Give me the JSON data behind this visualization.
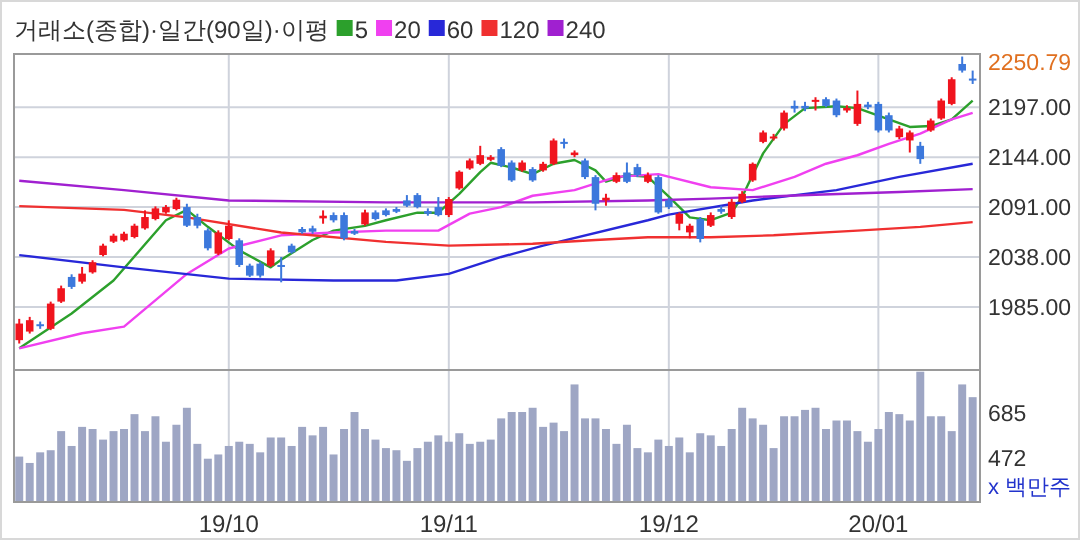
{
  "chart_data": [
    {
      "type": "candlestick",
      "title": "거래소(종합)·일간(90일)·이평",
      "legend": "top left",
      "grid": true,
      "tick_labels": "y",
      "ohlc": [
        [
          1949.7,
          1972.3,
          1946.1,
          1967.3
        ],
        [
          1958.8,
          1974.4,
          1956.7,
          1970.9
        ],
        [
          1966.6,
          1969.4,
          1961.7,
          1965.2
        ],
        [
          1961.7,
          1990.6,
          1960.3,
          1988.5
        ],
        [
          1990.6,
          2007.6,
          1989.2,
          2004.8
        ],
        [
          2016.8,
          2019.6,
          2004.1,
          2006.2
        ],
        [
          2011.8,
          2027.4,
          2009.7,
          2020.3
        ],
        [
          2021.7,
          2034.5,
          2020.3,
          2032.4
        ],
        [
          2040.1,
          2052.1,
          2038.7,
          2050.0
        ],
        [
          2054.3,
          2062.7,
          2052.8,
          2060.6
        ],
        [
          2055.7,
          2064.8,
          2054.3,
          2062.7
        ],
        [
          2059.2,
          2073.3,
          2057.8,
          2071.2
        ],
        [
          2068.4,
          2087.5,
          2067.0,
          2080.4
        ],
        [
          2078.3,
          2091.7,
          2076.9,
          2089.6
        ],
        [
          2085.3,
          2093.1,
          2083.9,
          2091.0
        ],
        [
          2088.9,
          2100.9,
          2087.5,
          2098.8
        ],
        [
          2091.0,
          2094.5,
          2069.8,
          2071.2
        ],
        [
          2080.4,
          2083.9,
          2068.4,
          2071.2
        ],
        [
          2066.3,
          2068.4,
          2045.0,
          2047.2
        ],
        [
          2041.5,
          2066.3,
          2040.1,
          2064.1
        ],
        [
          2057.1,
          2076.9,
          2055.7,
          2071.2
        ],
        [
          2055.7,
          2057.8,
          2027.4,
          2029.5
        ],
        [
          2028.8,
          2030.9,
          2016.8,
          2018.2
        ],
        [
          2030.9,
          2033.0,
          2016.1,
          2018.2
        ],
        [
          2028.8,
          2047.2,
          2027.4,
          2045.0
        ],
        [
          2029.5,
          2038.0,
          2011.1,
          2028.1
        ],
        [
          2050.0,
          2052.1,
          2041.5,
          2042.9
        ],
        [
          2067.7,
          2069.8,
          2062.7,
          2064.1
        ],
        [
          2068.4,
          2071.2,
          2062.7,
          2064.8
        ],
        [
          2079.0,
          2087.5,
          2073.3,
          2081.8
        ],
        [
          2082.5,
          2085.3,
          2074.7,
          2076.9
        ],
        [
          2082.5,
          2085.3,
          2055.7,
          2057.8
        ],
        [
          2065.6,
          2067.7,
          2061.3,
          2062.7
        ],
        [
          2072.6,
          2088.2,
          2071.2,
          2085.3
        ],
        [
          2085.3,
          2087.5,
          2076.9,
          2078.3
        ],
        [
          2087.5,
          2089.6,
          2081.1,
          2082.5
        ],
        [
          2088.9,
          2091.0,
          2084.6,
          2086.0
        ],
        [
          2098.1,
          2103.7,
          2091.0,
          2092.4
        ],
        [
          2103.7,
          2105.8,
          2089.6,
          2091.0
        ],
        [
          2086.7,
          2089.6,
          2081.8,
          2083.9
        ],
        [
          2091.0,
          2101.6,
          2081.1,
          2082.5
        ],
        [
          2082.5,
          2101.6,
          2080.4,
          2099.5
        ],
        [
          2110.8,
          2129.9,
          2109.4,
          2128.5
        ],
        [
          2132.0,
          2142.6,
          2130.6,
          2140.5
        ],
        [
          2136.9,
          2156.0,
          2135.5,
          2146.1
        ],
        [
          2141.2,
          2146.1,
          2139.8,
          2144.0
        ],
        [
          2152.5,
          2154.6,
          2133.4,
          2134.8
        ],
        [
          2138.3,
          2140.5,
          2117.8,
          2119.3
        ],
        [
          2129.9,
          2140.5,
          2128.5,
          2138.3
        ],
        [
          2131.3,
          2133.4,
          2117.8,
          2119.3
        ],
        [
          2129.9,
          2139.0,
          2128.5,
          2136.9
        ],
        [
          2136.9,
          2163.8,
          2135.5,
          2161.7
        ],
        [
          2160.2,
          2163.8,
          2153.2,
          2158.8
        ],
        [
          2146.1,
          2151.1,
          2144.0,
          2148.9
        ],
        [
          2140.5,
          2142.6,
          2120.7,
          2122.8
        ],
        [
          2122.8,
          2124.9,
          2087.5,
          2094.5
        ],
        [
          2098.1,
          2105.1,
          2092.4,
          2100.9
        ],
        [
          2117.8,
          2127.7,
          2116.4,
          2124.9
        ],
        [
          2127.7,
          2138.3,
          2116.4,
          2117.8
        ],
        [
          2133.4,
          2136.9,
          2122.8,
          2124.9
        ],
        [
          2117.8,
          2127.7,
          2116.4,
          2124.9
        ],
        [
          2122.8,
          2124.9,
          2083.9,
          2085.3
        ],
        [
          2098.1,
          2100.9,
          2088.9,
          2091.0
        ],
        [
          2073.3,
          2085.3,
          2066.3,
          2083.9
        ],
        [
          2064.1,
          2073.3,
          2057.8,
          2071.2
        ],
        [
          2078.3,
          2080.4,
          2053.5,
          2057.1
        ],
        [
          2071.2,
          2085.3,
          2069.8,
          2082.5
        ],
        [
          2088.9,
          2092.4,
          2083.9,
          2086.0
        ],
        [
          2080.4,
          2099.5,
          2078.3,
          2096.6
        ],
        [
          2096.6,
          2107.9,
          2095.2,
          2105.1
        ],
        [
          2119.3,
          2138.3,
          2117.8,
          2136.9
        ],
        [
          2160.2,
          2172.3,
          2158.8,
          2170.2
        ],
        [
          2163.8,
          2168.7,
          2161.7,
          2165.9
        ],
        [
          2174.4,
          2193.5,
          2172.3,
          2191.3
        ],
        [
          2198.4,
          2204.1,
          2191.3,
          2195.6
        ],
        [
          2198.4,
          2202.7,
          2192.8,
          2195.6
        ],
        [
          2203.4,
          2207.6,
          2193.5,
          2204.8
        ],
        [
          2205.5,
          2207.6,
          2197.0,
          2198.4
        ],
        [
          2204.1,
          2206.2,
          2186.4,
          2188.5
        ],
        [
          2193.5,
          2199.1,
          2191.3,
          2196.3
        ],
        [
          2179.3,
          2214.7,
          2177.2,
          2200.5
        ],
        [
          2199.8,
          2202.7,
          2194.9,
          2197.0
        ],
        [
          2200.5,
          2202.7,
          2170.2,
          2172.3
        ],
        [
          2188.5,
          2191.3,
          2170.2,
          2172.3
        ],
        [
          2165.2,
          2177.2,
          2163.1,
          2174.4
        ],
        [
          2161.7,
          2172.3,
          2148.9,
          2170.2
        ],
        [
          2156.0,
          2160.2,
          2136.9,
          2141.9
        ],
        [
          2172.3,
          2185.0,
          2170.9,
          2182.9
        ],
        [
          2185.0,
          2206.2,
          2183.6,
          2204.1
        ],
        [
          2200.5,
          2228.8,
          2199.1,
          2226.7
        ],
        [
          2242.9,
          2250.79,
          2233.8,
          2235.9
        ],
        [
          2227.4,
          2235.9,
          2221.7,
          2226.0
        ]
      ],
      "colors": [
        "#f0141e",
        "#f0141e",
        "#3c78dc",
        "#f0141e",
        "#f0141e",
        "#3c78dc",
        "#f0141e",
        "#f0141e",
        "#f0141e",
        "#f0141e",
        "#f0141e",
        "#f0141e",
        "#f0141e",
        "#f0141e",
        "#f0141e",
        "#f0141e",
        "#3c78dc",
        "#3c78dc",
        "#3c78dc",
        "#f0141e",
        "#f0141e",
        "#3c78dc",
        "#3c78dc",
        "#3c78dc",
        "#f0141e",
        "#3c78dc",
        "#3c78dc",
        "#3c78dc",
        "#3c78dc",
        "#f0141e",
        "#3c78dc",
        "#3c78dc",
        "#3c78dc",
        "#f0141e",
        "#3c78dc",
        "#3c78dc",
        "#3c78dc",
        "#3c78dc",
        "#3c78dc",
        "#3c78dc",
        "#3c78dc",
        "#f0141e",
        "#f0141e",
        "#f0141e",
        "#f0141e",
        "#f0141e",
        "#3c78dc",
        "#3c78dc",
        "#f0141e",
        "#3c78dc",
        "#f0141e",
        "#f0141e",
        "#3c78dc",
        "#f0141e",
        "#3c78dc",
        "#3c78dc",
        "#f0141e",
        "#f0141e",
        "#3c78dc",
        "#3c78dc",
        "#f0141e",
        "#3c78dc",
        "#3c78dc",
        "#f0141e",
        "#f0141e",
        "#3c78dc",
        "#f0141e",
        "#3c78dc",
        "#f0141e",
        "#f0141e",
        "#f0141e",
        "#f0141e",
        "#f0141e",
        "#f0141e",
        "#3c78dc",
        "#3c78dc",
        "#f0141e",
        "#3c78dc",
        "#3c78dc",
        "#f0141e",
        "#f0141e",
        "#3c78dc",
        "#3c78dc",
        "#3c78dc",
        "#f0141e",
        "#f0141e",
        "#3c78dc",
        "#f0141e",
        "#f0141e",
        "#f0141e",
        "#3c78dc",
        "#3c78dc"
      ],
      "series": [
        {
          "type": "line",
          "name": "5",
          "color": "#2ca02c",
          "values": [
            1941,
            null,
            null,
            null,
            null,
            1978,
            null,
            null,
            null,
            2013,
            null,
            null,
            null,
            null,
            2077,
            null,
            2088,
            null,
            2070,
            null,
            null,
            2045,
            null,
            null,
            2027,
            2035,
            null,
            null,
            2056,
            null,
            2066,
            null,
            null,
            2071,
            null,
            2077,
            null,
            null,
            2085,
            null,
            2085,
            null,
            2105,
            null,
            2128,
            2138,
            null,
            2133,
            null,
            2126,
            null,
            2137,
            null,
            2141,
            null,
            2130,
            2118,
            null,
            2125,
            null,
            2123,
            null,
            2102,
            null,
            2080,
            null,
            2077,
            null,
            2085,
            2102,
            null,
            2148,
            null,
            2179,
            null,
            2196,
            null,
            null,
            2198,
            null,
            2196,
            null,
            null,
            2184,
            null,
            2176,
            null,
            2177,
            null,
            2184,
            null,
            2204
          ]
        },
        {
          "type": "line",
          "name": "20",
          "color": "#f040f0",
          "values": [
            1941,
            null,
            null,
            null,
            null,
            null,
            1957,
            null,
            null,
            null,
            1964,
            null,
            null,
            null,
            null,
            null,
            2020,
            null,
            null,
            null,
            2047,
            null,
            null,
            null,
            null,
            2061,
            null,
            null,
            null,
            null,
            2064,
            null,
            null,
            null,
            null,
            2066,
            null,
            null,
            null,
            null,
            2066,
            null,
            null,
            2084,
            null,
            null,
            2091,
            null,
            null,
            2103,
            null,
            null,
            null,
            2109,
            null,
            null,
            null,
            2123,
            null,
            null,
            null,
            2126,
            null,
            null,
            null,
            null,
            2112,
            null,
            null,
            null,
            2109,
            null,
            null,
            null,
            2123,
            null,
            null,
            2137,
            null,
            null,
            2146,
            null,
            null,
            2158,
            null,
            null,
            2169,
            null,
            null,
            2184,
            null,
            2191
          ]
        },
        {
          "type": "line",
          "name": "60",
          "color": "#2828d8",
          "values": [
            2040,
            null,
            null,
            null,
            null,
            null,
            null,
            null,
            null,
            null,
            2027,
            null,
            null,
            null,
            null,
            null,
            null,
            null,
            null,
            null,
            2015,
            null,
            null,
            null,
            null,
            null,
            null,
            null,
            null,
            null,
            2013,
            null,
            null,
            null,
            null,
            null,
            2013,
            null,
            null,
            null,
            null,
            2020,
            null,
            null,
            null,
            null,
            2038,
            null,
            null,
            null,
            2050,
            null,
            null,
            null,
            null,
            null,
            null,
            null,
            null,
            null,
            2077,
            null,
            2083,
            null,
            null,
            null,
            null,
            null,
            null,
            null,
            2098,
            null,
            null,
            null,
            null,
            null,
            null,
            null,
            2109,
            null,
            null,
            null,
            null,
            null,
            2123,
            null,
            null,
            null,
            null,
            null,
            null,
            2137
          ]
        },
        {
          "type": "line",
          "name": "120",
          "color": "#f03030",
          "values": [
            2092,
            null,
            null,
            null,
            null,
            null,
            null,
            null,
            null,
            null,
            2088,
            null,
            null,
            null,
            null,
            null,
            2080,
            null,
            null,
            null,
            null,
            null,
            null,
            null,
            null,
            2064,
            null,
            null,
            null,
            null,
            null,
            null,
            null,
            null,
            null,
            2054,
            null,
            null,
            null,
            null,
            null,
            2050,
            null,
            null,
            null,
            null,
            null,
            null,
            null,
            2052,
            null,
            null,
            null,
            null,
            null,
            2056,
            null,
            null,
            null,
            null,
            2059,
            null,
            null,
            null,
            null,
            null,
            2059,
            null,
            null,
            null,
            null,
            null,
            2061,
            null,
            null,
            null,
            null,
            null,
            null,
            null,
            2066,
            null,
            null,
            null,
            null,
            null,
            2070,
            null,
            null,
            null,
            null,
            2075
          ]
        },
        {
          "type": "line",
          "name": "240",
          "color": "#a020d0",
          "values": [
            2119,
            null,
            null,
            null,
            null,
            null,
            null,
            null,
            null,
            null,
            2109,
            null,
            null,
            null,
            null,
            null,
            null,
            null,
            null,
            null,
            2098,
            null,
            null,
            null,
            null,
            null,
            null,
            null,
            null,
            null,
            null,
            null,
            null,
            null,
            null,
            2096,
            null,
            null,
            null,
            null,
            null,
            null,
            null,
            null,
            null,
            null,
            null,
            null,
            null,
            2096,
            null,
            null,
            null,
            null,
            null,
            null,
            null,
            null,
            null,
            null,
            2098,
            null,
            null,
            null,
            null,
            null,
            2100,
            null,
            null,
            null,
            null,
            null,
            null,
            null,
            null,
            null,
            2104,
            null,
            null,
            null,
            null,
            null,
            null,
            null,
            2107,
            null,
            null,
            null,
            null,
            null,
            null,
            2110
          ]
        }
      ],
      "ylim": [
        1918,
        2253.5
      ],
      "yticks": [
        {
          "value": 1985,
          "label": "1985.00"
        },
        {
          "value": 2038,
          "label": "2038.00"
        },
        {
          "value": 2091,
          "label": "2091.00"
        },
        {
          "value": 2144,
          "label": "2144.00"
        },
        {
          "value": 2197,
          "label": "2197.00"
        }
      ],
      "annotations": [
        "2250.79"
      ]
    },
    {
      "type": "bar",
      "color": "#9ea6c4",
      "ylabel": "x 백만주",
      "grid": "x",
      "categories": [
        null,
        null,
        null,
        null,
        null,
        null,
        null,
        null,
        null,
        null,
        null,
        null,
        null,
        null,
        null,
        null,
        null,
        null,
        null,
        null,
        "19/10",
        null,
        null,
        null,
        null,
        null,
        null,
        null,
        null,
        null,
        null,
        null,
        null,
        null,
        null,
        null,
        null,
        null,
        null,
        null,
        null,
        "19/11",
        null,
        null,
        null,
        null,
        null,
        null,
        null,
        null,
        null,
        null,
        null,
        null,
        null,
        null,
        null,
        null,
        null,
        null,
        null,
        null,
        "19/12",
        null,
        null,
        null,
        null,
        null,
        null,
        null,
        null,
        null,
        null,
        null,
        null,
        null,
        null,
        null,
        null,
        null,
        null,
        null,
        "20/01",
        null,
        null,
        null,
        null,
        null,
        null,
        null,
        null,
        null
      ],
      "values": [
        480,
        450,
        500,
        510,
        600,
        530,
        620,
        610,
        560,
        600,
        610,
        680,
        600,
        670,
        550,
        630,
        710,
        540,
        470,
        490,
        530,
        550,
        540,
        500,
        570,
        570,
        530,
        620,
        580,
        620,
        490,
        610,
        690,
        610,
        560,
        520,
        510,
        460,
        520,
        550,
        580,
        550,
        590,
        540,
        550,
        560,
        660,
        690,
        690,
        710,
        620,
        640,
        600,
        820,
        660,
        660,
        610,
        540,
        630,
        520,
        500,
        560,
        530,
        570,
        500,
        590,
        580,
        530,
        610,
        710,
        660,
        630,
        520,
        670,
        670,
        700,
        710,
        610,
        650,
        650,
        600,
        550,
        610,
        690,
        680,
        650,
        880,
        670,
        670,
        600,
        820,
        760
      ],
      "ylim": [
        266,
        888
      ],
      "yticks": [
        472,
        685
      ]
    }
  ]
}
